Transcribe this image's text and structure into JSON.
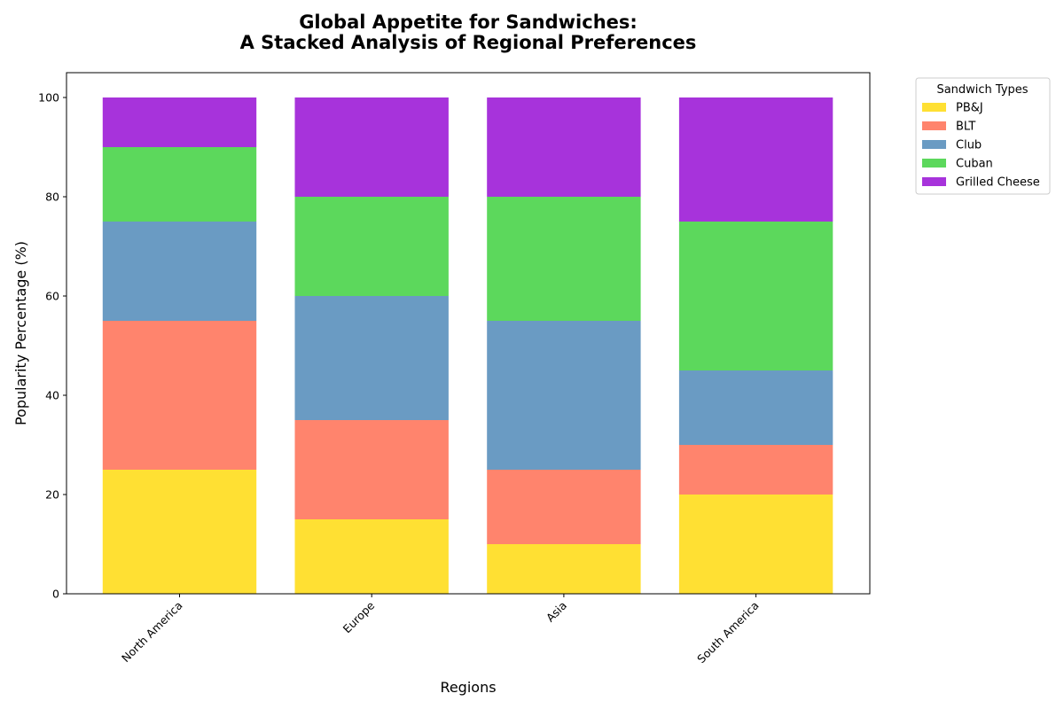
{
  "chart_data": {
    "type": "bar",
    "stacked": true,
    "title": "Global Appetite for Sandwiches:",
    "subtitle": "A Stacked Analysis of Regional Preferences",
    "xlabel": "Regions",
    "ylabel": "Popularity Percentage (%)",
    "categories": [
      "North America",
      "Europe",
      "Asia",
      "South America"
    ],
    "ylim": [
      0,
      105
    ],
    "yticks": [
      0,
      20,
      40,
      60,
      80,
      100
    ],
    "grid": false,
    "legend": {
      "title": "Sandwich Types",
      "placement": "outside-top-right"
    },
    "series": [
      {
        "name": "PB&J",
        "color": "#FFE033",
        "values": [
          25,
          15,
          10,
          20
        ]
      },
      {
        "name": "BLT",
        "color": "#FF846D",
        "values": [
          30,
          20,
          15,
          10
        ]
      },
      {
        "name": "Club",
        "color": "#6A9BC3",
        "values": [
          20,
          25,
          30,
          15
        ]
      },
      {
        "name": "Cuban",
        "color": "#5CD85C",
        "values": [
          15,
          20,
          25,
          30
        ]
      },
      {
        "name": "Grilled Cheese",
        "color": "#A733DB",
        "values": [
          10,
          20,
          20,
          25
        ]
      }
    ]
  }
}
